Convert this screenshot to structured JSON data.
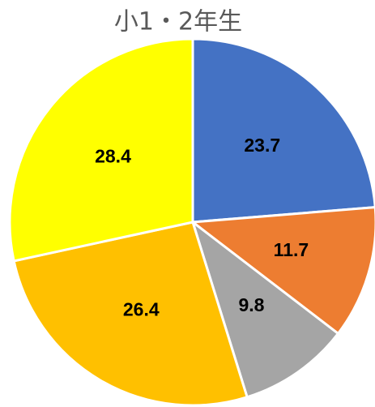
{
  "chart_data": {
    "type": "pie",
    "title": "小1・2年生",
    "values": [
      23.7,
      11.7,
      9.8,
      26.4,
      28.4
    ],
    "colors": [
      "#4472c4",
      "#ed7d31",
      "#a5a5a5",
      "#ffc000",
      "#ffff00"
    ]
  }
}
